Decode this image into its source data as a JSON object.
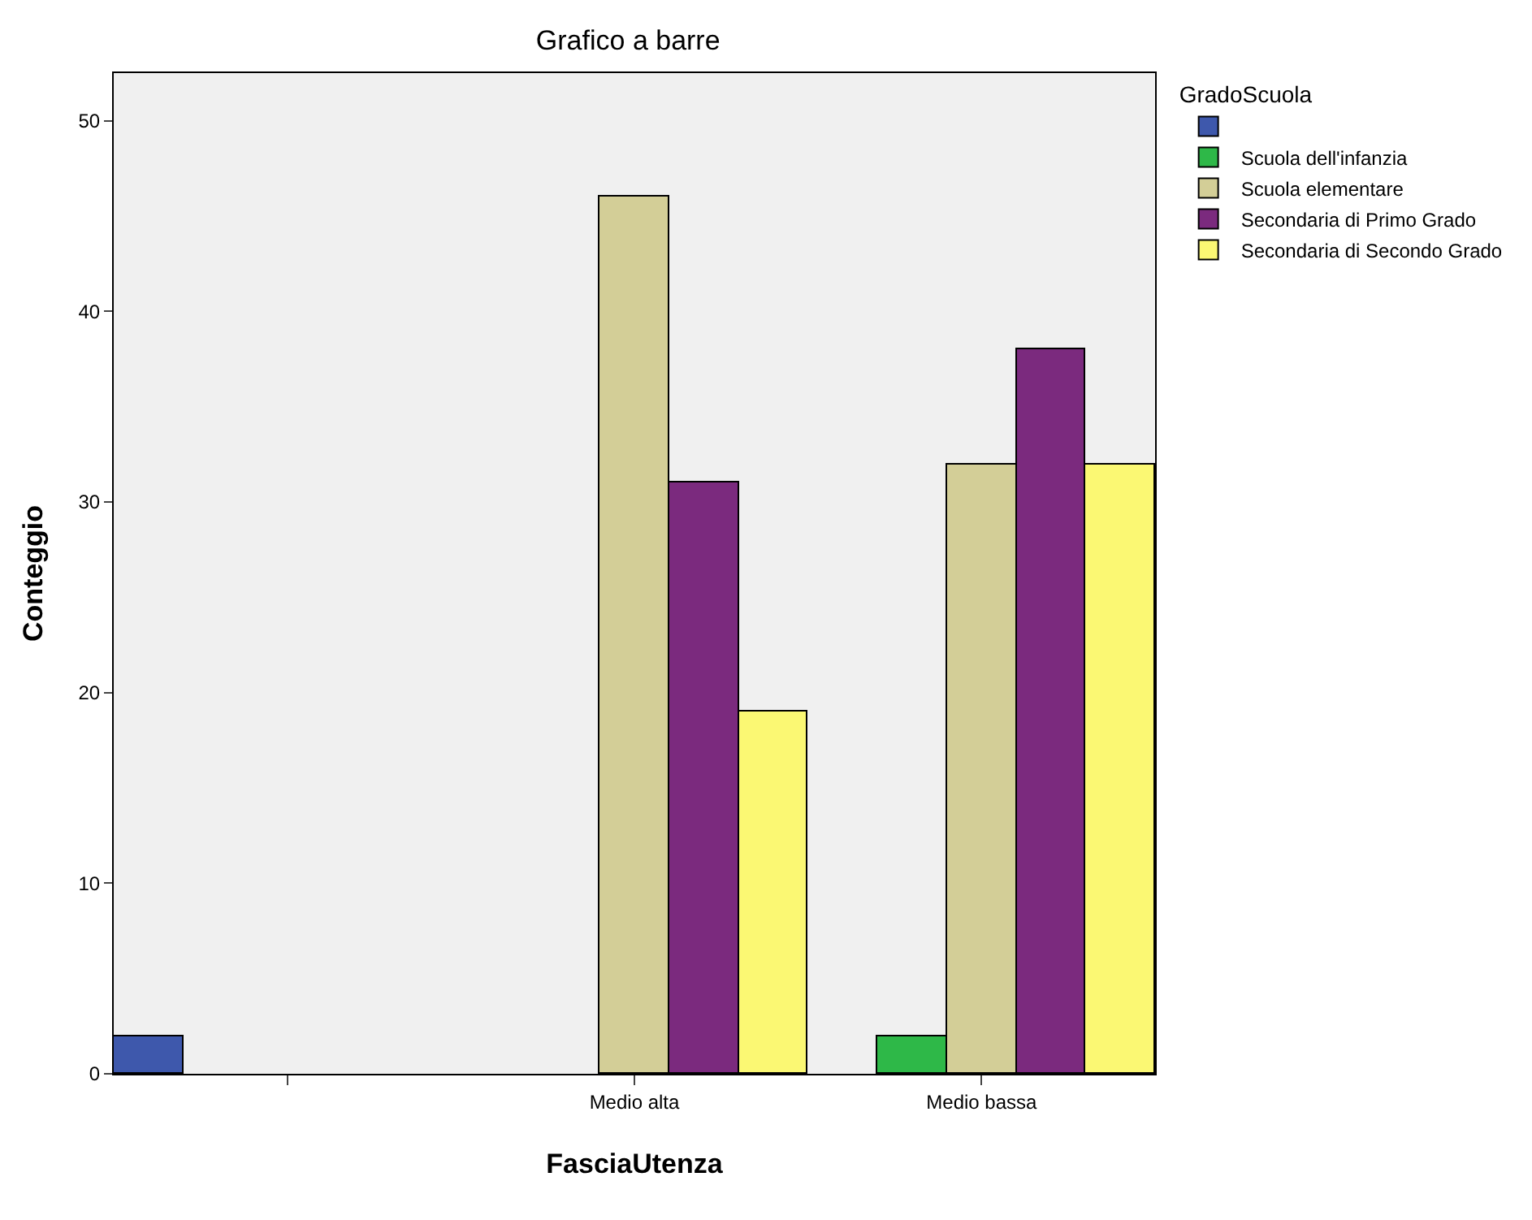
{
  "chart_data": {
    "type": "bar",
    "title": "Grafico a barre",
    "xlabel": "FasciaUtenza",
    "ylabel": "Conteggio",
    "legend_title": "GradoScuola",
    "categories": [
      null,
      "Medio alta",
      "Medio bassa"
    ],
    "series": [
      {
        "color": "#3e58ac",
        "values": [
          2,
          null,
          null
        ]
      },
      {
        "name": "Scuola dell'infanzia",
        "color": "#2eb848",
        "values": [
          null,
          null,
          2
        ]
      },
      {
        "name": "Scuola elementare",
        "color": "#d3ce97",
        "values": [
          null,
          46,
          32
        ]
      },
      {
        "name": "Secondaria di Primo Grado",
        "color": "#7b2a7e",
        "values": [
          null,
          31,
          38
        ]
      },
      {
        "name": "Secondaria di Secondo Grado",
        "color": "#fbf873",
        "values": [
          null,
          19,
          32
        ]
      }
    ],
    "ylim": [
      0,
      52.5
    ],
    "yticks": [
      0,
      10,
      20,
      30,
      40,
      50
    ],
    "grid": false,
    "legend": "top right"
  }
}
